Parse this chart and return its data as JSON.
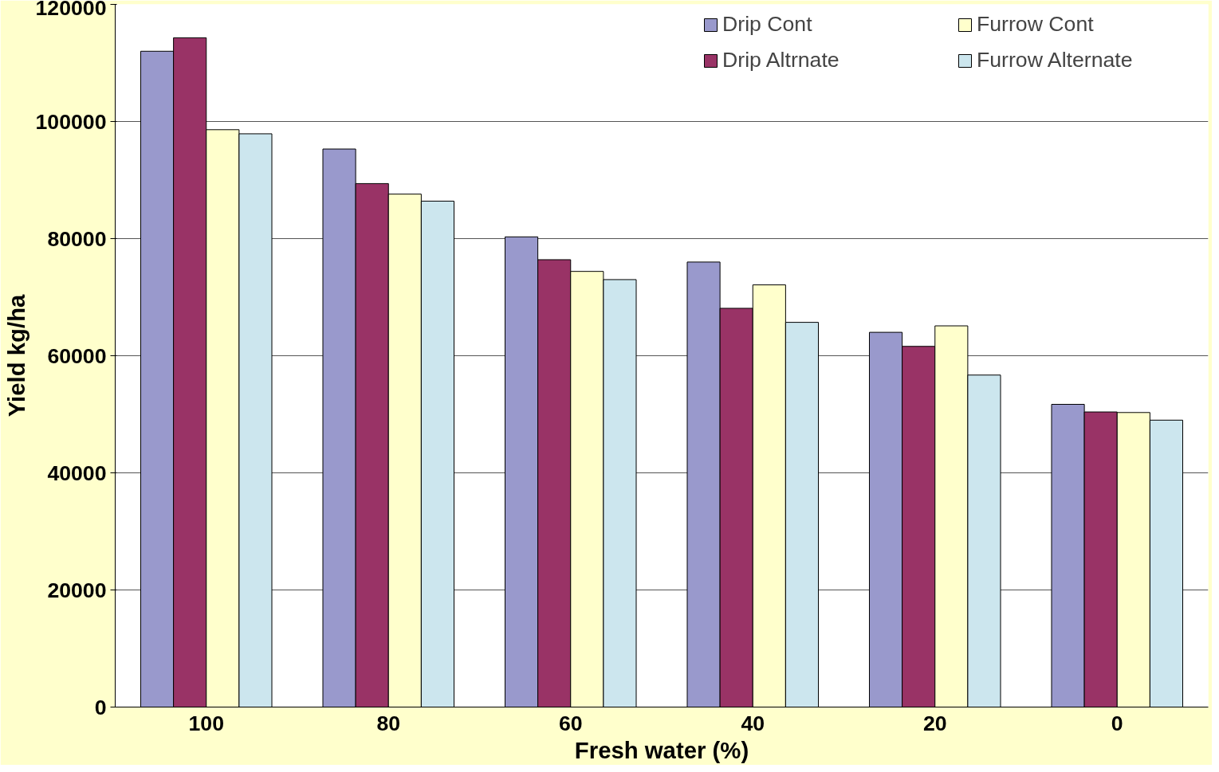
{
  "chart_data": {
    "type": "bar",
    "xlabel": "Fresh water (%)",
    "ylabel": "Yield kg/ha",
    "categories": [
      "100",
      "80",
      "60",
      "40",
      "20",
      "0"
    ],
    "series": [
      {
        "name": "Drip Cont",
        "color": "#9999cc",
        "values": [
          112000,
          95300,
          80300,
          76000,
          64000,
          51700
        ]
      },
      {
        "name": "Drip Altrnate",
        "color": "#993366",
        "values": [
          114300,
          89400,
          76400,
          68100,
          61600,
          50400
        ]
      },
      {
        "name": "Furrow Cont",
        "color": "#ffffcc",
        "values": [
          98600,
          87600,
          74400,
          72100,
          65100,
          50300
        ]
      },
      {
        "name": "Furrow Alternate",
        "color": "#cce6ee",
        "values": [
          97900,
          86400,
          73000,
          65700,
          56700,
          49000
        ]
      }
    ],
    "ylim": [
      0,
      120000
    ],
    "yticks": [
      0,
      20000,
      40000,
      60000,
      80000,
      100000,
      120000
    ],
    "grid": "y",
    "legend": "top right"
  }
}
